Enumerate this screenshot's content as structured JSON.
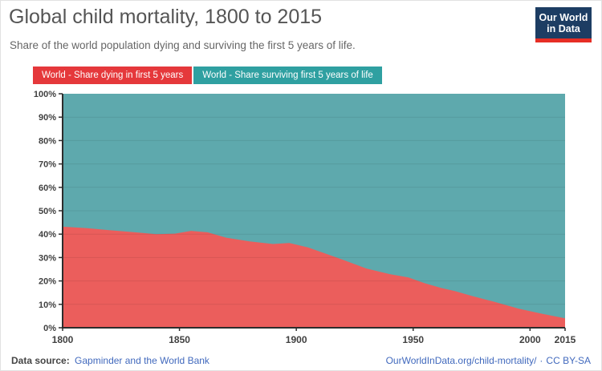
{
  "header": {
    "title": "Global child mortality, 1800 to 2015",
    "subtitle": "Share of the world population dying and surviving the first 5 years of life."
  },
  "logo": {
    "line1": "Our World",
    "line2": "in Data",
    "bg_color": "#1d3d63",
    "bar_color": "#e62e25"
  },
  "legend": [
    {
      "label": "World - Share dying in first 5 years",
      "color": "#e5383b"
    },
    {
      "label": "World - Share surviving first 5 years of life",
      "color": "#2fa0a1"
    }
  ],
  "footer": {
    "source_label": "Data source:",
    "source_link": "Gapminder and the World Bank",
    "site_link": "OurWorldInData.org/child-mortality/",
    "separator": "·",
    "license": "CC BY-SA"
  },
  "colors": {
    "axis": "#2d2d2d",
    "tick_label": "#404040",
    "grid": "rgba(0,0,0,0.08)",
    "area_dying": "#eb5e5c",
    "area_surviving": "#5ea9ad"
  },
  "chart_data": {
    "type": "area",
    "stacked": true,
    "title": "Global child mortality, 1800 to 2015",
    "xlabel": "",
    "ylabel": "",
    "xlim": [
      1800,
      2015
    ],
    "ylim": [
      0,
      100
    ],
    "grid": true,
    "legend_position": "top-left",
    "x": [
      1800,
      1810,
      1820,
      1830,
      1840,
      1848,
      1855,
      1862,
      1870,
      1880,
      1890,
      1897,
      1905,
      1913,
      1920,
      1930,
      1940,
      1948,
      1955,
      1962,
      1968,
      1975,
      1985,
      1995,
      2005,
      2015
    ],
    "series": [
      {
        "name": "World - Share dying in first 5 years",
        "area_color": "#eb5e5c",
        "values": [
          43.2,
          42.6,
          41.7,
          40.9,
          40.0,
          40.2,
          41.4,
          40.8,
          38.5,
          36.9,
          35.8,
          36.2,
          34.3,
          31.5,
          29.0,
          25.3,
          22.9,
          21.5,
          19.0,
          17.0,
          15.6,
          13.6,
          11.0,
          8.2,
          6.0,
          4.0
        ]
      },
      {
        "name": "World - Share surviving first 5 years of life",
        "area_color": "#5ea9ad",
        "values": [
          56.8,
          57.4,
          58.3,
          59.1,
          60.0,
          59.8,
          58.6,
          59.2,
          61.5,
          63.1,
          64.2,
          63.8,
          65.7,
          68.5,
          71.0,
          74.7,
          77.1,
          78.5,
          81.0,
          83.0,
          84.4,
          86.4,
          89.0,
          91.8,
          94.0,
          96.0
        ]
      }
    ],
    "x_tick_years": [
      1800,
      1850,
      1900,
      1950,
      2000,
      2015
    ],
    "x_tick_labels": [
      "1800",
      "1850",
      "1900",
      "1950",
      "2000",
      "2015"
    ],
    "y_tick_labels": [
      "0%",
      "10%",
      "20%",
      "30%",
      "40%",
      "50%",
      "60%",
      "70%",
      "80%",
      "90%",
      "100%"
    ]
  }
}
